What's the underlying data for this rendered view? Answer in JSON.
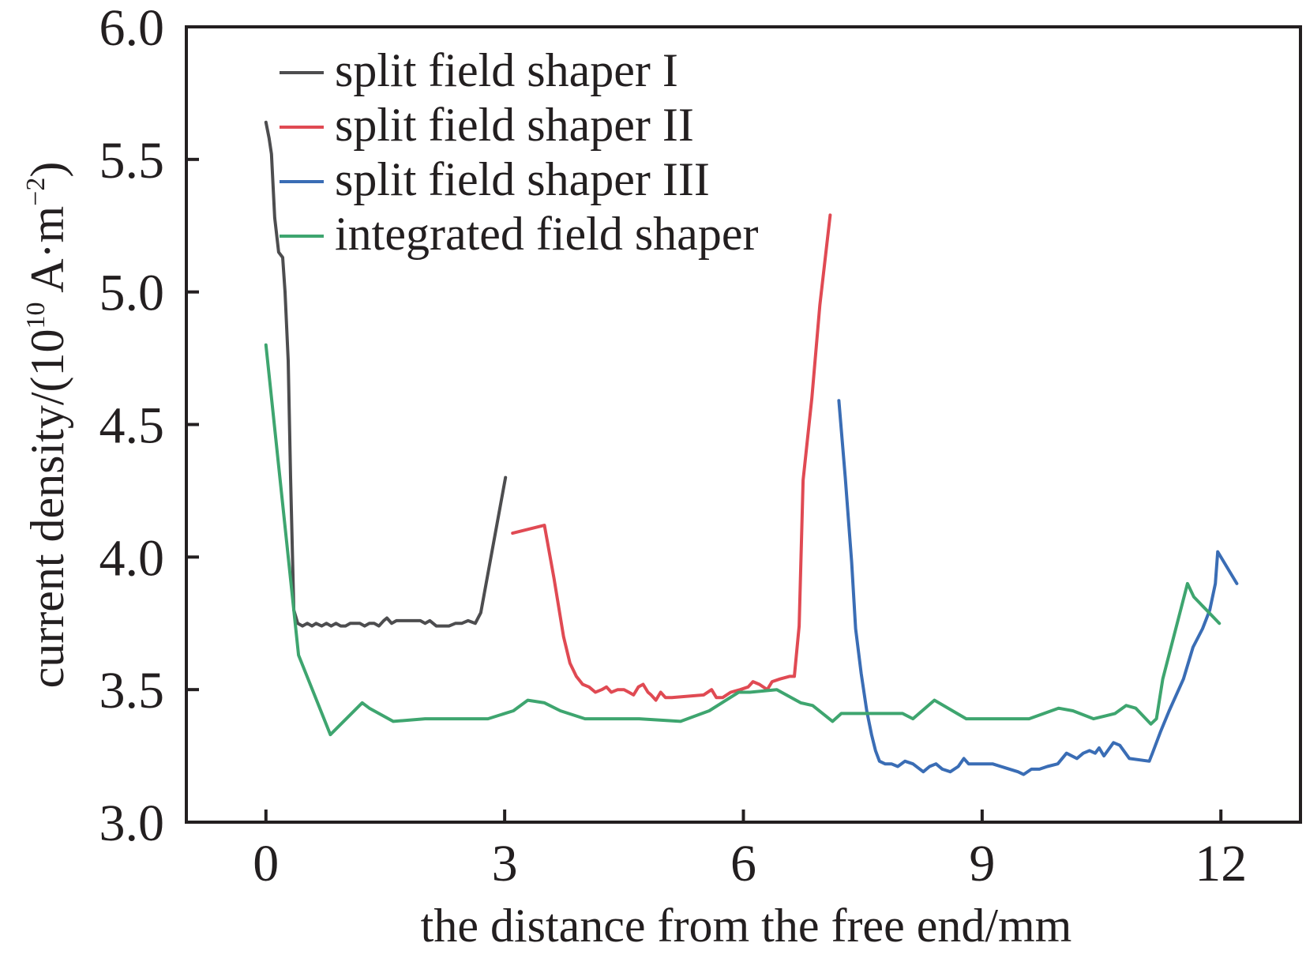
{
  "chart_data": {
    "type": "line",
    "title": "",
    "xlabel": "the distance from the free end/mm",
    "ylabel_parts": {
      "prefix": "current density/(10",
      "exp1": "10",
      "middle": " A·m",
      "exp2": "−2",
      "suffix": ")"
    },
    "ylabel": "current density/(10^10 A·m^−2)",
    "xlim": [
      -1,
      13
    ],
    "ylim": [
      3.0,
      6.0
    ],
    "xticks": [
      0,
      3,
      6,
      9,
      12
    ],
    "xtick_labels": [
      "0",
      "3",
      "6",
      "9",
      "12"
    ],
    "yticks": [
      3.0,
      3.5,
      4.0,
      4.5,
      5.0,
      5.5,
      6.0
    ],
    "ytick_labels": [
      "3.0",
      "3.5",
      "4.0",
      "4.5",
      "5.0",
      "5.5",
      "6.0"
    ],
    "grid": false,
    "legend_position": "top-left",
    "series": [
      {
        "name": "split field shaper I",
        "color": "#4d4d4f",
        "x": [
          0,
          0.04,
          0.07,
          0.11,
          0.16,
          0.21,
          0.24,
          0.28,
          0.31,
          0.35,
          0.4,
          0.46,
          0.52,
          0.58,
          0.63,
          0.7,
          0.76,
          0.82,
          0.88,
          0.94,
          1.0,
          1.06,
          1.12,
          1.18,
          1.24,
          1.3,
          1.36,
          1.42,
          1.48,
          1.52,
          1.58,
          1.64,
          1.7,
          1.78,
          1.86,
          1.94,
          2.0,
          2.06,
          2.14,
          2.22,
          2.3,
          2.38,
          2.46,
          2.54,
          2.63,
          2.7,
          3.01
        ],
        "y": [
          5.64,
          5.58,
          5.52,
          5.28,
          5.15,
          5.13,
          5.0,
          4.74,
          4.3,
          3.8,
          3.75,
          3.74,
          3.75,
          3.74,
          3.75,
          3.74,
          3.75,
          3.74,
          3.75,
          3.74,
          3.74,
          3.75,
          3.75,
          3.75,
          3.74,
          3.75,
          3.75,
          3.74,
          3.76,
          3.77,
          3.75,
          3.76,
          3.76,
          3.76,
          3.76,
          3.76,
          3.75,
          3.76,
          3.74,
          3.74,
          3.74,
          3.75,
          3.75,
          3.76,
          3.75,
          3.79,
          4.3
        ]
      },
      {
        "name": "split field shaper II",
        "color": "#e04a53",
        "x": [
          3.1,
          3.5,
          3.62,
          3.74,
          3.82,
          3.9,
          3.98,
          4.06,
          4.14,
          4.22,
          4.28,
          4.34,
          4.42,
          4.5,
          4.56,
          4.62,
          4.68,
          4.74,
          4.8,
          4.84,
          4.9,
          4.96,
          5.02,
          5.1,
          5.5,
          5.6,
          5.66,
          5.74,
          5.84,
          5.96,
          6.06,
          6.12,
          6.2,
          6.3,
          6.36,
          6.46,
          6.58,
          6.64,
          6.7,
          6.75,
          6.86,
          6.96,
          7.09
        ],
        "y": [
          4.09,
          4.12,
          3.92,
          3.7,
          3.6,
          3.55,
          3.52,
          3.51,
          3.49,
          3.5,
          3.51,
          3.49,
          3.5,
          3.5,
          3.49,
          3.48,
          3.51,
          3.52,
          3.49,
          3.48,
          3.46,
          3.49,
          3.47,
          3.47,
          3.48,
          3.5,
          3.47,
          3.47,
          3.49,
          3.5,
          3.51,
          3.53,
          3.52,
          3.5,
          3.53,
          3.54,
          3.55,
          3.55,
          3.74,
          4.29,
          4.6,
          4.95,
          5.29
        ]
      },
      {
        "name": "split field shaper III",
        "color": "#3a6db5",
        "x": [
          7.2,
          7.28,
          7.36,
          7.41,
          7.48,
          7.55,
          7.61,
          7.66,
          7.71,
          7.78,
          7.86,
          7.94,
          8.03,
          8.13,
          8.26,
          8.34,
          8.42,
          8.5,
          8.6,
          8.7,
          8.77,
          8.83,
          9.13,
          9.45,
          9.52,
          9.62,
          9.72,
          9.82,
          9.95,
          10.06,
          10.19,
          10.27,
          10.35,
          10.42,
          10.47,
          10.53,
          10.65,
          10.73,
          10.85,
          11.1,
          11.14,
          11.24,
          11.35,
          11.53,
          11.65,
          11.77,
          11.86,
          11.93,
          11.96,
          12.2
        ],
        "y": [
          4.59,
          4.3,
          3.98,
          3.73,
          3.56,
          3.42,
          3.33,
          3.27,
          3.23,
          3.22,
          3.22,
          3.21,
          3.23,
          3.22,
          3.19,
          3.21,
          3.22,
          3.2,
          3.19,
          3.21,
          3.24,
          3.22,
          3.22,
          3.19,
          3.18,
          3.2,
          3.2,
          3.21,
          3.22,
          3.26,
          3.24,
          3.26,
          3.27,
          3.26,
          3.28,
          3.25,
          3.3,
          3.29,
          3.24,
          3.23,
          3.26,
          3.34,
          3.42,
          3.54,
          3.66,
          3.73,
          3.8,
          3.9,
          4.02,
          3.9
        ]
      },
      {
        "name": "integrated field shaper",
        "color": "#3ea56f",
        "x": [
          0,
          0.41,
          0.81,
          1.21,
          1.3,
          1.6,
          2.0,
          2.4,
          2.79,
          3.11,
          3.29,
          3.5,
          3.7,
          4.01,
          4.69,
          5.21,
          5.57,
          5.94,
          6.08,
          6.42,
          6.72,
          6.87,
          7.12,
          7.23,
          7.56,
          8.0,
          8.13,
          8.4,
          8.8,
          9.59,
          9.96,
          10.14,
          10.4,
          10.67,
          10.81,
          10.93,
          11.12,
          11.19,
          11.27,
          11.58,
          11.66,
          11.98
        ],
        "y": [
          4.8,
          3.63,
          3.33,
          3.45,
          3.43,
          3.38,
          3.39,
          3.39,
          3.39,
          3.42,
          3.46,
          3.45,
          3.42,
          3.39,
          3.39,
          3.38,
          3.42,
          3.49,
          3.49,
          3.5,
          3.45,
          3.44,
          3.38,
          3.41,
          3.41,
          3.41,
          3.39,
          3.46,
          3.39,
          3.39,
          3.43,
          3.42,
          3.39,
          3.41,
          3.44,
          3.43,
          3.37,
          3.39,
          3.54,
          3.9,
          3.85,
          3.75
        ]
      }
    ]
  }
}
